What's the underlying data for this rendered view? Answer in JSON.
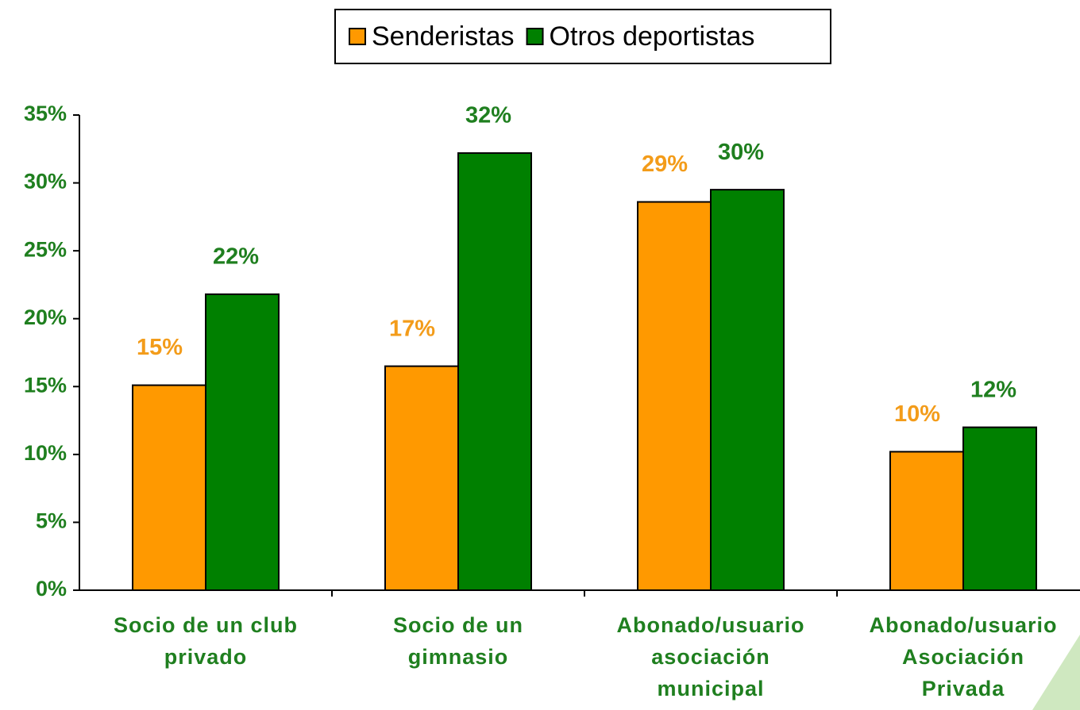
{
  "chart_data": {
    "type": "bar",
    "categories": [
      "Socio de un club\nprivado",
      "Socio de un\ngimnasio",
      "Abonado/usuario\nasociación\nmunicipal",
      "Abonado/usuario\nAsociación\nPrivada"
    ],
    "series": [
      {
        "name": "Senderistas",
        "color": "#ff9900",
        "label_color": "#f39c1a",
        "values": [
          15.1,
          16.5,
          28.6,
          10.2
        ],
        "value_labels": [
          "15%",
          "17%",
          "29%",
          "10%"
        ]
      },
      {
        "name": "Otros deportistas",
        "color": "#008000",
        "label_color": "#1f7f1f",
        "values": [
          21.8,
          32.2,
          29.5,
          12.0
        ],
        "value_labels": [
          "22%",
          "32%",
          "30%",
          "12%"
        ]
      }
    ],
    "ylim": [
      0,
      35
    ],
    "yticks": [
      {
        "value": 0,
        "label": "0%"
      },
      {
        "value": 5,
        "label": "5%"
      },
      {
        "value": 10,
        "label": "10%"
      },
      {
        "value": 15,
        "label": "15%"
      },
      {
        "value": 20,
        "label": "20%"
      },
      {
        "value": 25,
        "label": "25%"
      },
      {
        "value": 30,
        "label": "30%"
      },
      {
        "value": 35,
        "label": "35%"
      }
    ],
    "legend": "top",
    "grid": false
  }
}
